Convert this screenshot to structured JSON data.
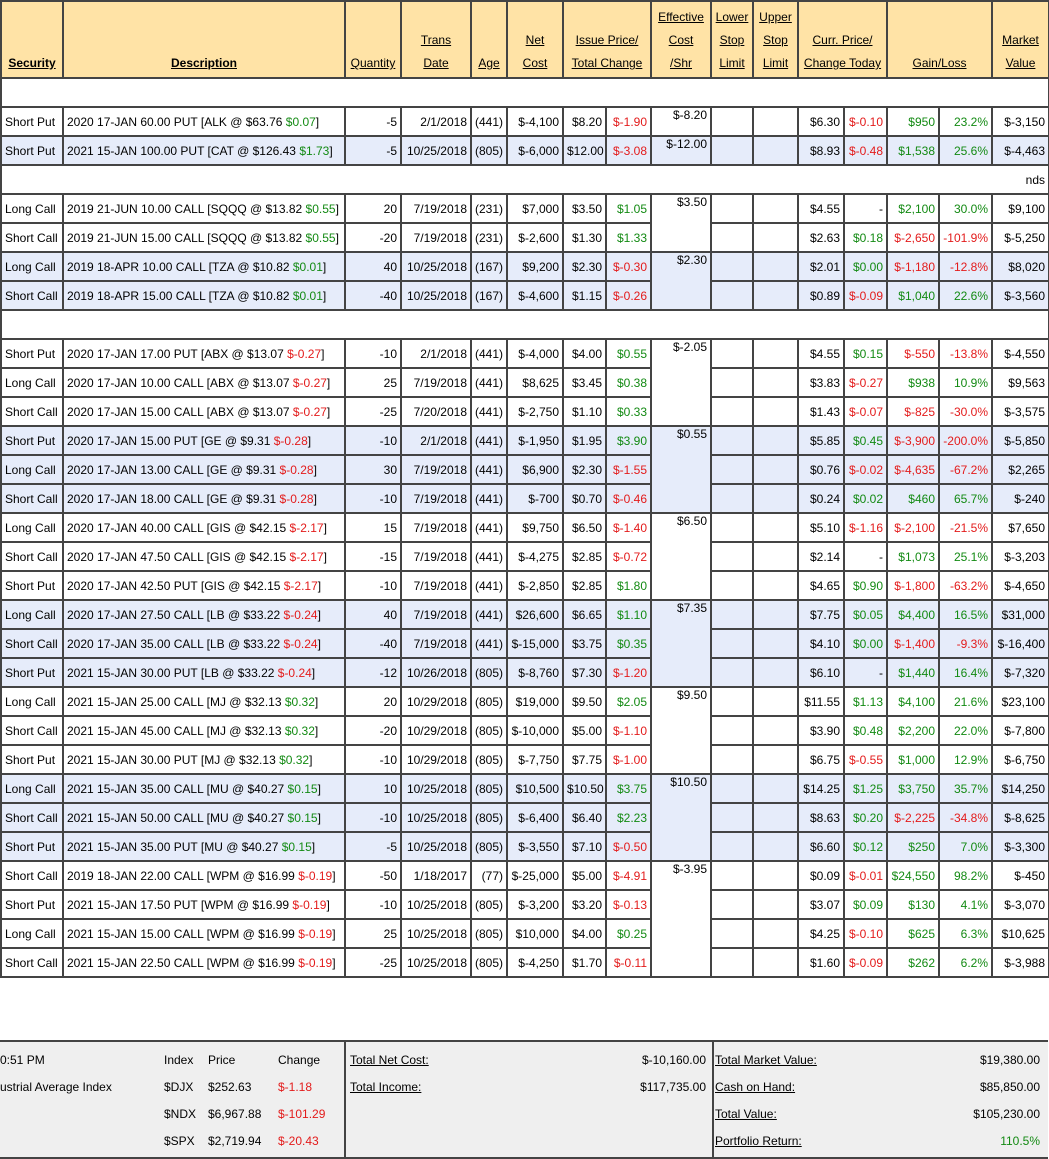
{
  "headers": [
    {
      "key": "security",
      "lines": [
        "Security"
      ],
      "bold": true
    },
    {
      "key": "description",
      "lines": [
        "Description"
      ],
      "bold": true
    },
    {
      "key": "quantity",
      "lines": [
        "Quantity"
      ]
    },
    {
      "key": "trans_date",
      "lines": [
        "Trans",
        "Date"
      ]
    },
    {
      "key": "age",
      "lines": [
        "Age"
      ]
    },
    {
      "key": "net_cost",
      "lines": [
        "Net",
        "Cost"
      ]
    },
    {
      "key": "issue_price",
      "lines": [
        "Issue Price/",
        "Total Change"
      ],
      "span": 2
    },
    {
      "key": "eff_cost",
      "lines": [
        "Effective",
        "Cost",
        "/Shr"
      ]
    },
    {
      "key": "lower_stop",
      "lines": [
        "Lower",
        "Stop",
        "Limit"
      ]
    },
    {
      "key": "upper_stop",
      "lines": [
        "Upper",
        "Stop",
        "Limit"
      ]
    },
    {
      "key": "curr_price",
      "lines": [
        "Curr. Price/",
        "Change Today"
      ],
      "span": 2
    },
    {
      "key": "gain_loss",
      "lines": [
        "Gain/Loss"
      ],
      "span": 2
    },
    {
      "key": "market_value",
      "lines": [
        "Market",
        "Value"
      ]
    }
  ],
  "sections": [
    {
      "title": "",
      "groups": [
        {
          "eff": "$-8.20",
          "rows": [
            [
              "Short Put",
              "2020 17-JAN 60.00 PUT [ALK @ $63.76 ",
              "$0.07",
              "-5",
              "2/1/2018",
              "(441)",
              "$-4,100",
              "$8.20",
              "$-1.90",
              "$6.30",
              "$-0.10",
              "$950",
              "23.2%",
              "$-3,150"
            ]
          ]
        },
        {
          "eff": "$-12.00",
          "rows": [
            [
              "Short Put",
              "2021 15-JAN 100.00 PUT [CAT @ $126.43 ",
              "$1.73",
              "-5",
              "10/25/2018",
              "(805)",
              "$-6,000",
              "$12.00",
              "$-3.08",
              "$8.93",
              "$-0.48",
              "$1,538",
              "25.6%",
              "$-4,463"
            ]
          ]
        }
      ]
    },
    {
      "title": "nds",
      "groups": [
        {
          "eff": "$3.50",
          "rows": [
            [
              "Long Call",
              "2019 21-JUN 10.00 CALL [SQQQ @ $13.82 ",
              "$0.55",
              "20",
              "7/19/2018",
              "(231)",
              "$7,000",
              "$3.50",
              "$1.05",
              "$4.55",
              "-",
              "$2,100",
              "30.0%",
              "$9,100"
            ],
            [
              "Short Call",
              "2019 21-JUN 15.00 CALL [SQQQ @ $13.82 ",
              "$0.55",
              "-20",
              "7/19/2018",
              "(231)",
              "$-2,600",
              "$1.30",
              "$1.33",
              "$2.63",
              "$0.18",
              "$-2,650",
              "-101.9%",
              "$-5,250"
            ]
          ]
        },
        {
          "eff": "$2.30",
          "rows": [
            [
              "Long Call",
              "2019 18-APR 10.00 CALL [TZA @ $10.82 ",
              "$0.01",
              "40",
              "10/25/2018",
              "(167)",
              "$9,200",
              "$2.30",
              "$-0.30",
              "$2.01",
              "$0.00",
              "$-1,180",
              "-12.8%",
              "$8,020"
            ],
            [
              "Short Call",
              "2019 18-APR 15.00 CALL [TZA @ $10.82 ",
              "$0.01",
              "-40",
              "10/25/2018",
              "(167)",
              "$-4,600",
              "$1.15",
              "$-0.26",
              "$0.89",
              "$-0.09",
              "$1,040",
              "22.6%",
              "$-3,560"
            ]
          ]
        }
      ]
    },
    {
      "title": "",
      "groups": [
        {
          "eff": "$-2.05",
          "rows": [
            [
              "Short Put",
              "2020 17-JAN 17.00 PUT [ABX @ $13.07 ",
              "$-0.27",
              "-10",
              "2/1/2018",
              "(441)",
              "$-4,000",
              "$4.00",
              "$0.55",
              "$4.55",
              "$0.15",
              "$-550",
              "-13.8%",
              "$-4,550"
            ],
            [
              "Long Call",
              "2020 17-JAN 10.00 CALL [ABX @ $13.07 ",
              "$-0.27",
              "25",
              "7/19/2018",
              "(441)",
              "$8,625",
              "$3.45",
              "$0.38",
              "$3.83",
              "$-0.27",
              "$938",
              "10.9%",
              "$9,563"
            ],
            [
              "Short Call",
              "2020 17-JAN 15.00 CALL [ABX @ $13.07 ",
              "$-0.27",
              "-25",
              "7/20/2018",
              "(441)",
              "$-2,750",
              "$1.10",
              "$0.33",
              "$1.43",
              "$-0.07",
              "$-825",
              "-30.0%",
              "$-3,575"
            ]
          ]
        },
        {
          "eff": "$0.55",
          "rows": [
            [
              "Short Put",
              "2020 17-JAN 15.00 PUT [GE @ $9.31 ",
              "$-0.28",
              "-10",
              "2/1/2018",
              "(441)",
              "$-1,950",
              "$1.95",
              "$3.90",
              "$5.85",
              "$0.45",
              "$-3,900",
              "-200.0%",
              "$-5,850"
            ],
            [
              "Long Call",
              "2020 17-JAN 13.00 CALL [GE @ $9.31 ",
              "$-0.28",
              "30",
              "7/19/2018",
              "(441)",
              "$6,900",
              "$2.30",
              "$-1.55",
              "$0.76",
              "$-0.02",
              "$-4,635",
              "-67.2%",
              "$2,265"
            ],
            [
              "Short Call",
              "2020 17-JAN 18.00 CALL [GE @ $9.31 ",
              "$-0.28",
              "-10",
              "7/19/2018",
              "(441)",
              "$-700",
              "$0.70",
              "$-0.46",
              "$0.24",
              "$0.02",
              "$460",
              "65.7%",
              "$-240"
            ]
          ]
        },
        {
          "eff": "$6.50",
          "rows": [
            [
              "Long Call",
              "2020 17-JAN 40.00 CALL [GIS @ $42.15 ",
              "$-2.17",
              "15",
              "7/19/2018",
              "(441)",
              "$9,750",
              "$6.50",
              "$-1.40",
              "$5.10",
              "$-1.16",
              "$-2,100",
              "-21.5%",
              "$7,650"
            ],
            [
              "Short Call",
              "2020 17-JAN 47.50 CALL [GIS @ $42.15 ",
              "$-2.17",
              "-15",
              "7/19/2018",
              "(441)",
              "$-4,275",
              "$2.85",
              "$-0.72",
              "$2.14",
              "-",
              "$1,073",
              "25.1%",
              "$-3,203"
            ],
            [
              "Short Put",
              "2020 17-JAN 42.50 PUT [GIS @ $42.15 ",
              "$-2.17",
              "-10",
              "7/19/2018",
              "(441)",
              "$-2,850",
              "$2.85",
              "$1.80",
              "$4.65",
              "$0.90",
              "$-1,800",
              "-63.2%",
              "$-4,650"
            ]
          ]
        },
        {
          "eff": "$7.35",
          "rows": [
            [
              "Long Call",
              "2020 17-JAN 27.50 CALL [LB @ $33.22 ",
              "$-0.24",
              "40",
              "7/19/2018",
              "(441)",
              "$26,600",
              "$6.65",
              "$1.10",
              "$7.75",
              "$0.05",
              "$4,400",
              "16.5%",
              "$31,000"
            ],
            [
              "Short Call",
              "2020 17-JAN 35.00 CALL [LB @ $33.22 ",
              "$-0.24",
              "-40",
              "7/19/2018",
              "(441)",
              "$-15,000",
              "$3.75",
              "$0.35",
              "$4.10",
              "$0.00",
              "$-1,400",
              "-9.3%",
              "$-16,400"
            ],
            [
              "Short Put",
              "2021 15-JAN 30.00 PUT [LB @ $33.22 ",
              "$-0.24",
              "-12",
              "10/26/2018",
              "(805)",
              "$-8,760",
              "$7.30",
              "$-1.20",
              "$6.10",
              "-",
              "$1,440",
              "16.4%",
              "$-7,320"
            ]
          ]
        },
        {
          "eff": "$9.50",
          "rows": [
            [
              "Long Call",
              "2021 15-JAN 25.00 CALL [MJ @ $32.13 ",
              "$0.32",
              "20",
              "10/29/2018",
              "(805)",
              "$19,000",
              "$9.50",
              "$2.05",
              "$11.55",
              "$1.13",
              "$4,100",
              "21.6%",
              "$23,100"
            ],
            [
              "Short Call",
              "2021 15-JAN 45.00 CALL [MJ @ $32.13 ",
              "$0.32",
              "-20",
              "10/29/2018",
              "(805)",
              "$-10,000",
              "$5.00",
              "$-1.10",
              "$3.90",
              "$0.48",
              "$2,200",
              "22.0%",
              "$-7,800"
            ],
            [
              "Short Put",
              "2021 15-JAN 30.00 PUT [MJ @ $32.13 ",
              "$0.32",
              "-10",
              "10/29/2018",
              "(805)",
              "$-7,750",
              "$7.75",
              "$-1.00",
              "$6.75",
              "$-0.55",
              "$1,000",
              "12.9%",
              "$-6,750"
            ]
          ]
        },
        {
          "eff": "$10.50",
          "rows": [
            [
              "Long Call",
              "2021 15-JAN 35.00 CALL [MU @ $40.27 ",
              "$0.15",
              "10",
              "10/25/2018",
              "(805)",
              "$10,500",
              "$10.50",
              "$3.75",
              "$14.25",
              "$1.25",
              "$3,750",
              "35.7%",
              "$14,250"
            ],
            [
              "Short Call",
              "2021 15-JAN 50.00 CALL [MU @ $40.27 ",
              "$0.15",
              "-10",
              "10/25/2018",
              "(805)",
              "$-6,400",
              "$6.40",
              "$2.23",
              "$8.63",
              "$0.20",
              "$-2,225",
              "-34.8%",
              "$-8,625"
            ],
            [
              "Short Put",
              "2021 15-JAN 35.00 PUT [MU @ $40.27 ",
              "$0.15",
              "-5",
              "10/25/2018",
              "(805)",
              "$-3,550",
              "$7.10",
              "$-0.50",
              "$6.60",
              "$0.12",
              "$250",
              "7.0%",
              "$-3,300"
            ]
          ]
        },
        {
          "eff": "$-3.95",
          "rows": [
            [
              "Short Call",
              "2019 18-JAN 22.00 CALL [WPM @ $16.99 ",
              "$-0.19",
              "-50",
              "1/18/2017",
              "(77)",
              "$-25,000",
              "$5.00",
              "$-4.91",
              "$0.09",
              "$-0.01",
              "$24,550",
              "98.2%",
              "$-450"
            ],
            [
              "Short Put",
              "2021 15-JAN 17.50 PUT [WPM @ $16.99 ",
              "$-0.19",
              "-10",
              "10/25/2018",
              "(805)",
              "$-3,200",
              "$3.20",
              "$-0.13",
              "$3.07",
              "$0.09",
              "$130",
              "4.1%",
              "$-3,070"
            ],
            [
              "Long Call",
              "2021 15-JAN 15.00 CALL [WPM @ $16.99 ",
              "$-0.19",
              "25",
              "10/25/2018",
              "(805)",
              "$10,000",
              "$4.00",
              "$0.25",
              "$4.25",
              "$-0.10",
              "$625",
              "6.3%",
              "$10,625"
            ],
            [
              "Short Call",
              "2021 15-JAN 22.50 CALL [WPM @ $16.99 ",
              "$-0.19",
              "-25",
              "10/25/2018",
              "(805)",
              "$-4,250",
              "$1.70",
              "$-0.11",
              "$1.60",
              "$-0.09",
              "$262",
              "6.2%",
              "$-3,988"
            ]
          ]
        }
      ]
    }
  ],
  "footer": {
    "time": "0:51 PM",
    "index_name": "ustrial Average Index",
    "col_index": "Index",
    "col_price": "Price",
    "col_change": "Change",
    "indices": [
      {
        "sym": "$DJX",
        "price": "$252.63",
        "change": "$-1.18"
      },
      {
        "sym": "$NDX",
        "price": "$6,967.88",
        "change": "$-101.29"
      },
      {
        "sym": "$SPX",
        "price": "$2,719.94",
        "change": "$-20.43"
      }
    ],
    "total_net_cost_label": "Total Net Cost:",
    "total_net_cost": "$-10,160.00",
    "total_income_label": "Total Income:",
    "total_income": "$117,735.00",
    "total_market_value_label": "Total Market Value:",
    "total_market_value": "$19,380.00",
    "cash_label": "Cash on Hand:",
    "cash": "$85,850.00",
    "total_value_label": "Total Value:",
    "total_value": "$105,230.00",
    "portfolio_return_label": "Portfolio Return:",
    "portfolio_return": "110.5%"
  },
  "colors": {
    "positive": "#138a13",
    "negative": "#e31b1b",
    "header_bg": "#ffe3a6",
    "alt_row": "#e6ecfa",
    "section_bar": "#808080"
  }
}
